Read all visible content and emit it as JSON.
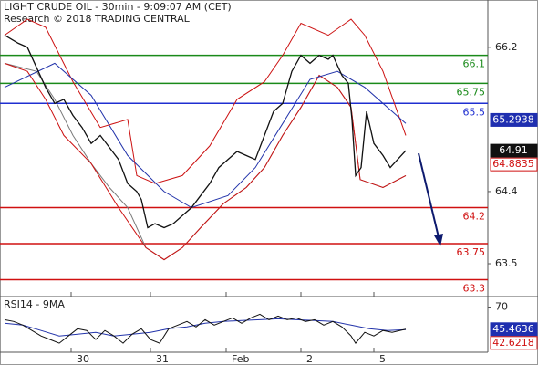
{
  "chart_data": [
    {
      "type": "line",
      "title": "LIGHT CRUDE OIL - 30min - 9:09:07 AM (CET)",
      "subtitle": "Research © 2018 TRADING CENTRAL",
      "xlim": [
        0,
        535
      ],
      "ylim": [
        63.09,
        66.79
      ],
      "yticks": [
        66.2,
        64.4,
        63.5
      ],
      "series": [
        {
          "color": "#7a7a7a",
          "width": 1,
          "x": [
            5,
            40,
            60,
            80,
            100,
            120,
            140,
            160,
            180,
            200,
            220,
            245,
            270,
            290,
            310,
            330,
            350,
            370,
            385,
            395,
            420,
            445
          ],
          "values": [
            66.0,
            65.9,
            65.55,
            65.1,
            64.75,
            64.45,
            64.2,
            63.7,
            63.55,
            63.7,
            63.95,
            64.25,
            64.45,
            64.7,
            65.1,
            65.45,
            65.85,
            65.7,
            65.45,
            64.55,
            64.45,
            64.6
          ]
        },
        {
          "color": "#cc1111",
          "width": 1,
          "x": [
            5,
            30,
            50,
            80,
            110,
            140,
            150,
            170,
            200,
            230,
            260,
            290,
            310,
            330,
            360,
            385,
            400,
            420,
            445
          ],
          "values": [
            66.35,
            66.55,
            66.45,
            65.77,
            65.2,
            65.3,
            64.6,
            64.5,
            64.6,
            64.97,
            65.55,
            65.77,
            66.1,
            66.5,
            66.35,
            66.55,
            66.35,
            65.9,
            65.1
          ]
        },
        {
          "color": "#cc1111",
          "width": 1,
          "x": [
            5,
            30,
            50,
            70,
            100,
            130,
            160,
            180,
            200,
            220,
            245,
            270,
            290,
            310,
            330,
            350,
            370,
            385,
            395,
            420,
            445
          ],
          "values": [
            66.0,
            65.9,
            65.55,
            65.1,
            64.75,
            64.2,
            63.7,
            63.55,
            63.7,
            63.95,
            64.25,
            64.45,
            64.7,
            65.1,
            65.45,
            65.85,
            65.7,
            65.45,
            64.55,
            64.45,
            64.6
          ]
        },
        {
          "color": "#2233aa",
          "width": 1,
          "x": [
            5,
            60,
            100,
            140,
            180,
            210,
            250,
            280,
            310,
            340,
            370,
            400,
            445
          ],
          "values": [
            65.7,
            66.0,
            65.6,
            64.85,
            64.4,
            64.2,
            64.35,
            64.7,
            65.25,
            65.8,
            65.9,
            65.7,
            65.25
          ]
        },
        {
          "color": "#111111",
          "width": 1.3,
          "x": [
            5,
            20,
            30,
            40,
            50,
            60,
            70,
            80,
            90,
            100,
            110,
            120,
            130,
            140,
            150,
            155,
            162,
            170,
            180,
            190,
            200,
            210,
            220,
            230,
            240,
            250,
            260,
            270,
            280,
            290,
            300,
            310,
            320,
            330,
            340,
            350,
            360,
            365,
            375,
            382,
            386,
            390,
            396,
            402,
            410,
            420,
            428,
            436,
            445
          ],
          "values": [
            66.35,
            66.25,
            66.2,
            65.95,
            65.7,
            65.5,
            65.55,
            65.35,
            65.2,
            65.0,
            65.1,
            64.95,
            64.8,
            64.5,
            64.4,
            64.3,
            63.95,
            64.0,
            63.95,
            64.0,
            64.1,
            64.2,
            64.35,
            64.5,
            64.7,
            64.8,
            64.9,
            64.85,
            64.8,
            65.1,
            65.4,
            65.5,
            65.9,
            66.1,
            66.0,
            66.1,
            66.05,
            66.1,
            65.85,
            65.75,
            65.3,
            64.6,
            64.7,
            65.4,
            65.0,
            64.85,
            64.7,
            64.8,
            64.91
          ]
        }
      ],
      "levels": [
        {
          "value": 66.1,
          "color": "#1a8a1a"
        },
        {
          "value": 65.75,
          "color": "#1a8a1a"
        },
        {
          "value": 65.5,
          "color": "#1f2fd0"
        },
        {
          "value": 64.2,
          "color": "#d01010"
        },
        {
          "value": 63.75,
          "color": "#d01010"
        },
        {
          "value": 63.3,
          "color": "#d01010"
        }
      ],
      "price_labels": [
        {
          "value": 65.2938,
          "color": "#1f2fb0",
          "style": "filled"
        },
        {
          "value": 64.91,
          "color": "#111111",
          "style": "filled"
        },
        {
          "value": 64.8835,
          "color": "#d01010",
          "style": "outline"
        }
      ]
    },
    {
      "type": "line",
      "title": "RSI14 - 9MA",
      "xlim": [
        0,
        535
      ],
      "ylim": [
        20,
        80.6
      ],
      "yticks": [
        70
      ],
      "xticks": [
        {
          "value": 78,
          "label": "30"
        },
        {
          "value": 165,
          "label": "31"
        },
        {
          "value": 248,
          "label": "Feb"
        },
        {
          "value": 330,
          "label": "2"
        },
        {
          "value": 410,
          "label": "5"
        }
      ],
      "series": [
        {
          "color": "#2233aa",
          "width": 1,
          "x": [
            5,
            25,
            45,
            65,
            85,
            105,
            125,
            145,
            165,
            185,
            205,
            225,
            245,
            265,
            285,
            305,
            325,
            345,
            365,
            385,
            405,
            425,
            445
          ],
          "values": [
            52,
            50,
            44,
            38,
            40,
            42,
            38,
            40,
            42,
            46,
            48,
            52,
            54,
            55,
            56,
            57,
            56,
            55,
            54,
            50,
            46,
            44,
            45
          ]
        },
        {
          "color": "#111111",
          "width": 1,
          "x": [
            5,
            15,
            25,
            35,
            45,
            55,
            65,
            75,
            85,
            95,
            105,
            115,
            125,
            135,
            145,
            155,
            165,
            175,
            185,
            195,
            205,
            215,
            225,
            235,
            245,
            255,
            265,
            275,
            285,
            295,
            305,
            315,
            325,
            335,
            345,
            355,
            365,
            375,
            385,
            390,
            400,
            410,
            420,
            430,
            445
          ],
          "values": [
            56,
            54,
            50,
            44,
            38,
            34,
            30,
            38,
            46,
            44,
            34,
            44,
            38,
            30,
            40,
            46,
            34,
            30,
            46,
            50,
            54,
            48,
            56,
            50,
            54,
            58,
            52,
            58,
            62,
            56,
            60,
            56,
            58,
            54,
            56,
            50,
            54,
            48,
            38,
            30,
            42,
            38,
            44,
            42,
            45.46
          ]
        }
      ],
      "price_labels": [
        {
          "value": 45.4636,
          "color": "#1f2fb0",
          "style": "filled"
        },
        {
          "value": 42.6218,
          "color": "#d01010",
          "style": "outline"
        }
      ]
    }
  ]
}
